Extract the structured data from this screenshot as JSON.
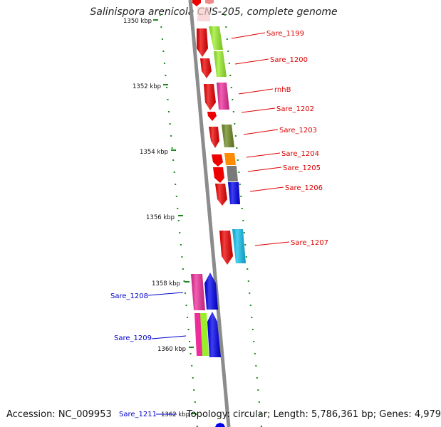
{
  "title": "Salinispora arenicola CNS-205, complete genome",
  "accession": "Accession: NC_009953",
  "summary": "Topology: circular; Length: 5,786,361 bp; Genes: 4,979",
  "colors": {
    "backbone": "#8c8c8c",
    "tick": "#1a8a1a",
    "right_label": "#dd0000",
    "left_label": "#0000cc"
  },
  "scale_labels": [
    "1350 kbp",
    "1352 kbp",
    "1354 kbp",
    "1356 kbp",
    "1358 kbp",
    "1360 kbp",
    "1362 kbp"
  ],
  "genes": [
    {
      "name": "Sare_1199",
      "side": "right",
      "color": "#9aef2a"
    },
    {
      "name": "Sare_1200",
      "side": "right",
      "color": "#9aef2a"
    },
    {
      "name": "rnhB",
      "side": "right",
      "color": "#ee2c9a"
    },
    {
      "name": "Sare_1202",
      "side": "right",
      "color": "#ee0000"
    },
    {
      "name": "Sare_1203",
      "side": "right",
      "color": "#6e8a22"
    },
    {
      "name": "Sare_1204",
      "side": "right",
      "color": "#ff8c00"
    },
    {
      "name": "Sare_1205",
      "side": "right",
      "color": "#7a7a7a"
    },
    {
      "name": "Sare_1206",
      "side": "right",
      "color": "#0000ee"
    },
    {
      "name": "Sare_1207",
      "side": "right",
      "color": "#11c0ee"
    },
    {
      "name": "Sare_1208",
      "side": "left",
      "color": "#ee2c9a"
    },
    {
      "name": "Sare_1209",
      "side": "left",
      "color": "#9aef2a"
    },
    {
      "name": "Sare_1211",
      "side": "left",
      "color": "#0000ee"
    }
  ]
}
